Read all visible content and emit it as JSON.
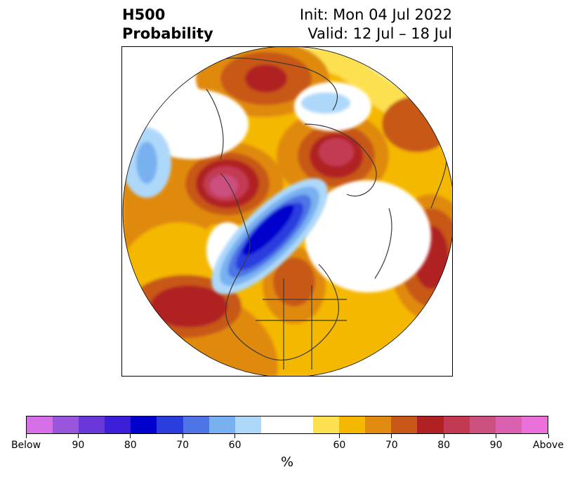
{
  "title": {
    "left_line1": "H500",
    "left_line2": "Probability",
    "right_line1": "Init: Mon 04 Jul 2022",
    "right_line2": "Valid: 12 Jul – 18 Jul"
  },
  "map": {
    "projection": "north-polar-stereographic",
    "background": "#ffffff",
    "coastline_color": "#3a3a3a"
  },
  "colorbar": {
    "unit_label": "%",
    "colors": [
      "#d46fe6",
      "#9a55dd",
      "#6a38d8",
      "#3a1ed8",
      "#0000cd",
      "#2a3ede",
      "#4e74e6",
      "#78b0f0",
      "#aed8fa",
      "#ffffff",
      "#ffffff",
      "#fde050",
      "#f5b800",
      "#e08a10",
      "#c85818",
      "#b02222",
      "#c23a52",
      "#cc5080",
      "#da60b0",
      "#e870d8"
    ],
    "tick_labels": [
      "Below",
      "90",
      "80",
      "70",
      "60",
      "60",
      "70",
      "80",
      "90",
      "Above"
    ]
  }
}
